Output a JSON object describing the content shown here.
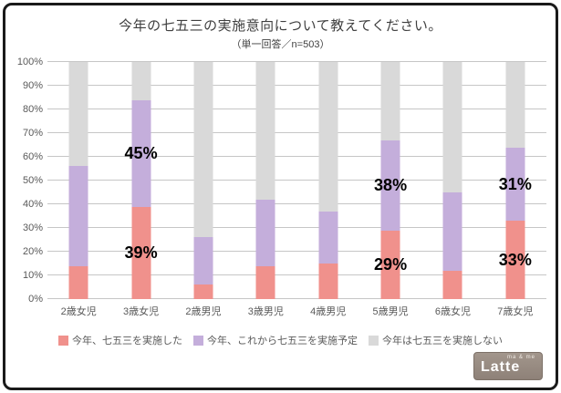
{
  "title": "今年の七五三の実施意向について教えてください。",
  "subtitle": "（単一回答／n=503）",
  "chart_data": {
    "type": "bar",
    "stacked": true,
    "title": "今年の七五三の実施意向について教えてください。",
    "subtitle": "（単一回答／n=503）",
    "categories": [
      "2歳女児",
      "3歳女児",
      "2歳男児",
      "3歳男児",
      "4歳男児",
      "5歳男児",
      "6歳女児",
      "7歳女児"
    ],
    "series": [
      {
        "name": "今年、七五三を実施した",
        "color": "#F0918C",
        "values": [
          14,
          39,
          6,
          14,
          15,
          29,
          12,
          33
        ]
      },
      {
        "name": "今年、これから七五三を実施予定",
        "color": "#C4AEDB",
        "values": [
          42,
          45,
          20,
          28,
          22,
          38,
          33,
          31
        ]
      },
      {
        "name": "今年は七五三を実施しない",
        "color": "#D9D9D9",
        "values": [
          44,
          16,
          74,
          58,
          63,
          33,
          55,
          36
        ]
      }
    ],
    "data_labels": [
      {
        "category": 1,
        "series": 1,
        "text": "45%"
      },
      {
        "category": 1,
        "series": 0,
        "text": "39%"
      },
      {
        "category": 5,
        "series": 1,
        "text": "38%"
      },
      {
        "category": 5,
        "series": 0,
        "text": "29%"
      },
      {
        "category": 7,
        "series": 1,
        "text": "31%"
      },
      {
        "category": 7,
        "series": 0,
        "text": "33%"
      }
    ],
    "ylim": [
      0,
      100
    ],
    "ytick_step": 10,
    "ytick_suffix": "%",
    "grid": true,
    "legend_position": "bottom"
  },
  "logo": {
    "tagline": "ma & me",
    "name": "Latte"
  }
}
